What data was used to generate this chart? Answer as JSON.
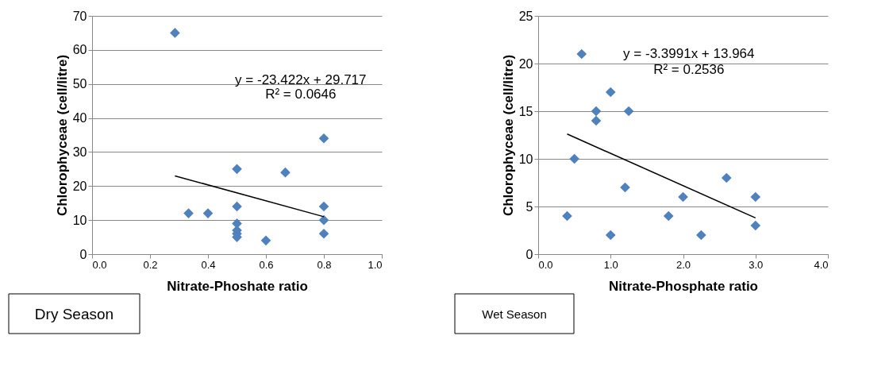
{
  "chart_data": [
    {
      "type": "scatter",
      "xlabel": "Nitrate-Phoshate ratio",
      "ylabel": "Chlorophyceae (cell/litre)",
      "x": [
        0.286,
        0.333,
        0.4,
        0.5,
        0.5,
        0.5,
        0.5,
        0.5,
        0.5,
        0.6,
        0.667,
        0.8,
        0.8,
        0.8,
        0.8
      ],
      "series": [
        {
          "color": "#4f81bd",
          "marker": "diamond",
          "values": [
            65,
            12,
            12,
            25,
            14,
            9,
            7,
            6,
            5,
            4,
            24,
            34,
            14,
            10,
            6
          ]
        },
        {
          "type": "line",
          "color": "#000000",
          "marker": "none",
          "x": [
            0.286,
            0.8
          ],
          "values": [
            23.0,
            11.0
          ]
        }
      ],
      "xlim": [
        0,
        1
      ],
      "xticks": [
        {
          "value": 0,
          "label": "0.0"
        },
        {
          "value": 0.2,
          "label": "0.2"
        },
        {
          "value": 0.4,
          "label": "0.4"
        },
        {
          "value": 0.6,
          "label": "0.6"
        },
        {
          "value": 0.8,
          "label": "0.8"
        },
        {
          "value": 1,
          "label": "1.0"
        }
      ],
      "ylim": [
        0,
        70
      ],
      "yticks": [
        0,
        10,
        20,
        30,
        40,
        50,
        60,
        70
      ],
      "grid": "y",
      "annotations": [
        "y = -23.422x + 29.717",
        "R² = 0.0646",
        "Dry Season"
      ]
    },
    {
      "type": "scatter",
      "xlabel": "Nitrate-Phosphate ratio",
      "ylabel": "Chlorophyceae (cell/litre)",
      "x": [
        0.4,
        0.5,
        0.6,
        0.8,
        0.8,
        1.0,
        1.0,
        1.2,
        1.25,
        1.8,
        2.0,
        2.25,
        2.6,
        3.0,
        3.0
      ],
      "series": [
        {
          "color": "#4f81bd",
          "marker": "diamond",
          "values": [
            4,
            10,
            21,
            15,
            14,
            17,
            2,
            7,
            15,
            4,
            6,
            2,
            8,
            6,
            3
          ]
        },
        {
          "type": "line",
          "color": "#000000",
          "marker": "none",
          "x": [
            0.4,
            3.0
          ],
          "values": [
            12.6,
            3.8
          ]
        }
      ],
      "xlim": [
        0,
        4
      ],
      "xticks": [
        {
          "value": 0,
          "label": "0.0"
        },
        {
          "value": 1,
          "label": "1.0"
        },
        {
          "value": 2,
          "label": "2.0"
        },
        {
          "value": 3,
          "label": "3.0"
        },
        {
          "value": 4,
          "label": "4.0"
        }
      ],
      "ylim": [
        0,
        25
      ],
      "yticks": [
        0,
        5,
        10,
        15,
        20,
        25
      ],
      "grid": "y",
      "annotations": [
        "y = -3.3991x + 13.964",
        "R² = 0.2536",
        "Wet Season"
      ]
    }
  ]
}
